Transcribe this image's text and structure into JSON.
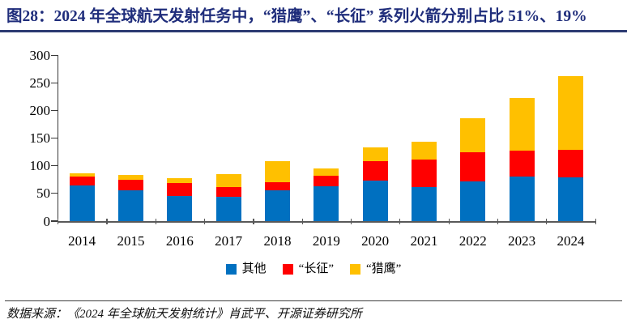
{
  "header": {
    "title": "图28：2024 年全球航天发射任务中，“猎鹰”、“长征” 系列火箭分别占比 51%、19%"
  },
  "chart_data": {
    "type": "bar",
    "stacked": true,
    "title": "2024 年全球航天发射任务中，“猎鹰”、“长征” 系列火箭分别占比 51%、19%",
    "categories": [
      "2014",
      "2015",
      "2016",
      "2017",
      "2018",
      "2019",
      "2020",
      "2021",
      "2022",
      "2023",
      "2024"
    ],
    "series": [
      {
        "name": "其他",
        "color": "#0070C0",
        "values": [
          65,
          55,
          46,
          44,
          56,
          63,
          74,
          62,
          72,
          80,
          79
        ]
      },
      {
        "name": "“长征”",
        "color": "#FF0000",
        "values": [
          15,
          20,
          23,
          18,
          15,
          19,
          34,
          50,
          53,
          47,
          50
        ]
      },
      {
        "name": "“猎鹰”",
        "color": "#FFC000",
        "values": [
          6,
          8,
          8,
          23,
          37,
          13,
          26,
          31,
          61,
          96,
          134
        ]
      }
    ],
    "totals": [
      86,
      83,
      77,
      85,
      108,
      95,
      134,
      143,
      186,
      223,
      263
    ],
    "xlabel": "",
    "ylabel": "",
    "ylim": [
      0,
      300
    ],
    "ytick_step": 50,
    "yticks": [
      "0",
      "50",
      "100",
      "150",
      "200",
      "250",
      "300"
    ],
    "grid": false,
    "legend_position": "bottom"
  },
  "footer": {
    "source": "数据来源：《2024 年全球航天发射统计》肖武平、开源证券研究所"
  },
  "colors": {
    "title_text": "#1f2d7b",
    "title_rule": "#2c3a72",
    "axis_line": "#595959",
    "bar_blue": "#0070C0",
    "bar_red": "#FF0000",
    "bar_yellow": "#FFC000"
  }
}
